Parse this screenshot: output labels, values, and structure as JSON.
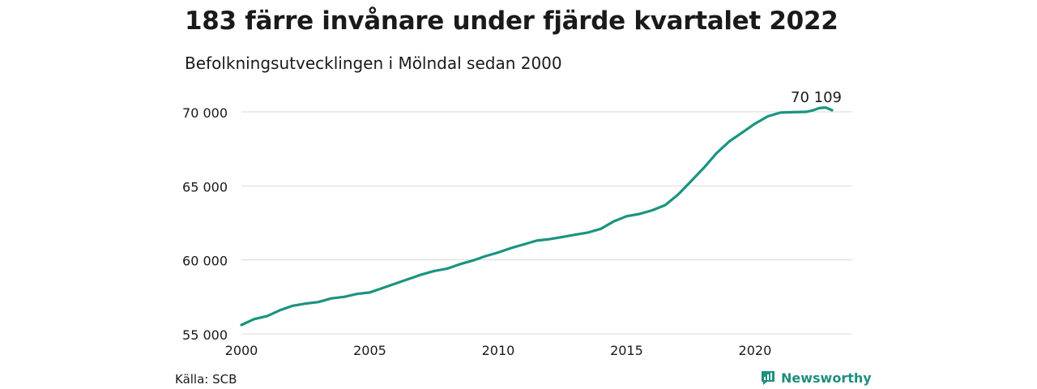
{
  "title": "183 färre invånare under fjärde kvartalet 2022",
  "subtitle": "Befolkningsutvecklingen i Mölndal sedan 2000",
  "source": "Källa: SCB",
  "brand": "Newsworthy",
  "colors": {
    "line": "#1a9480",
    "grid": "#d9d9d9",
    "brand": "#1f8f7d"
  },
  "chart_data": {
    "type": "line",
    "xlim": [
      2000,
      2023
    ],
    "ylim": [
      55000,
      71500
    ],
    "x_ticks": [
      2000,
      2005,
      2010,
      2015,
      2020
    ],
    "x_tick_labels": [
      "2000",
      "2005",
      "2010",
      "2015",
      "2020"
    ],
    "y_ticks": [
      55000,
      60000,
      65000,
      70000
    ],
    "y_tick_labels": [
      "55 000",
      "60 000",
      "65 000",
      "70 000"
    ],
    "grid": true,
    "end_label": "70 109",
    "series": [
      {
        "x": [
          2000.0,
          2000.5,
          2001.0,
          2001.5,
          2002.0,
          2002.5,
          2003.0,
          2003.5,
          2004.0,
          2004.5,
          2005.0,
          2005.5,
          2006.0,
          2006.5,
          2007.0,
          2007.5,
          2008.0,
          2008.5,
          2009.0,
          2009.5,
          2010.0,
          2010.5,
          2011.0,
          2011.5,
          2012.0,
          2012.5,
          2013.0,
          2013.5,
          2014.0,
          2014.5,
          2015.0,
          2015.5,
          2016.0,
          2016.5,
          2017.0,
          2017.5,
          2018.0,
          2018.5,
          2019.0,
          2019.5,
          2020.0,
          2020.5,
          2021.0,
          2021.5,
          2022.0,
          2022.25,
          2022.5,
          2022.75,
          2023.0
        ],
        "values": [
          55600,
          56000,
          56200,
          56600,
          56900,
          57050,
          57150,
          57400,
          57500,
          57700,
          57800,
          58100,
          58400,
          58700,
          59000,
          59250,
          59400,
          59700,
          59950,
          60250,
          60500,
          60800,
          61050,
          61300,
          61400,
          61550,
          61700,
          61850,
          62100,
          62600,
          62950,
          63100,
          63350,
          63700,
          64400,
          65300,
          66200,
          67200,
          68000,
          68600,
          69200,
          69700,
          69950,
          69980,
          70000,
          70100,
          70250,
          70290,
          70109
        ]
      }
    ]
  }
}
